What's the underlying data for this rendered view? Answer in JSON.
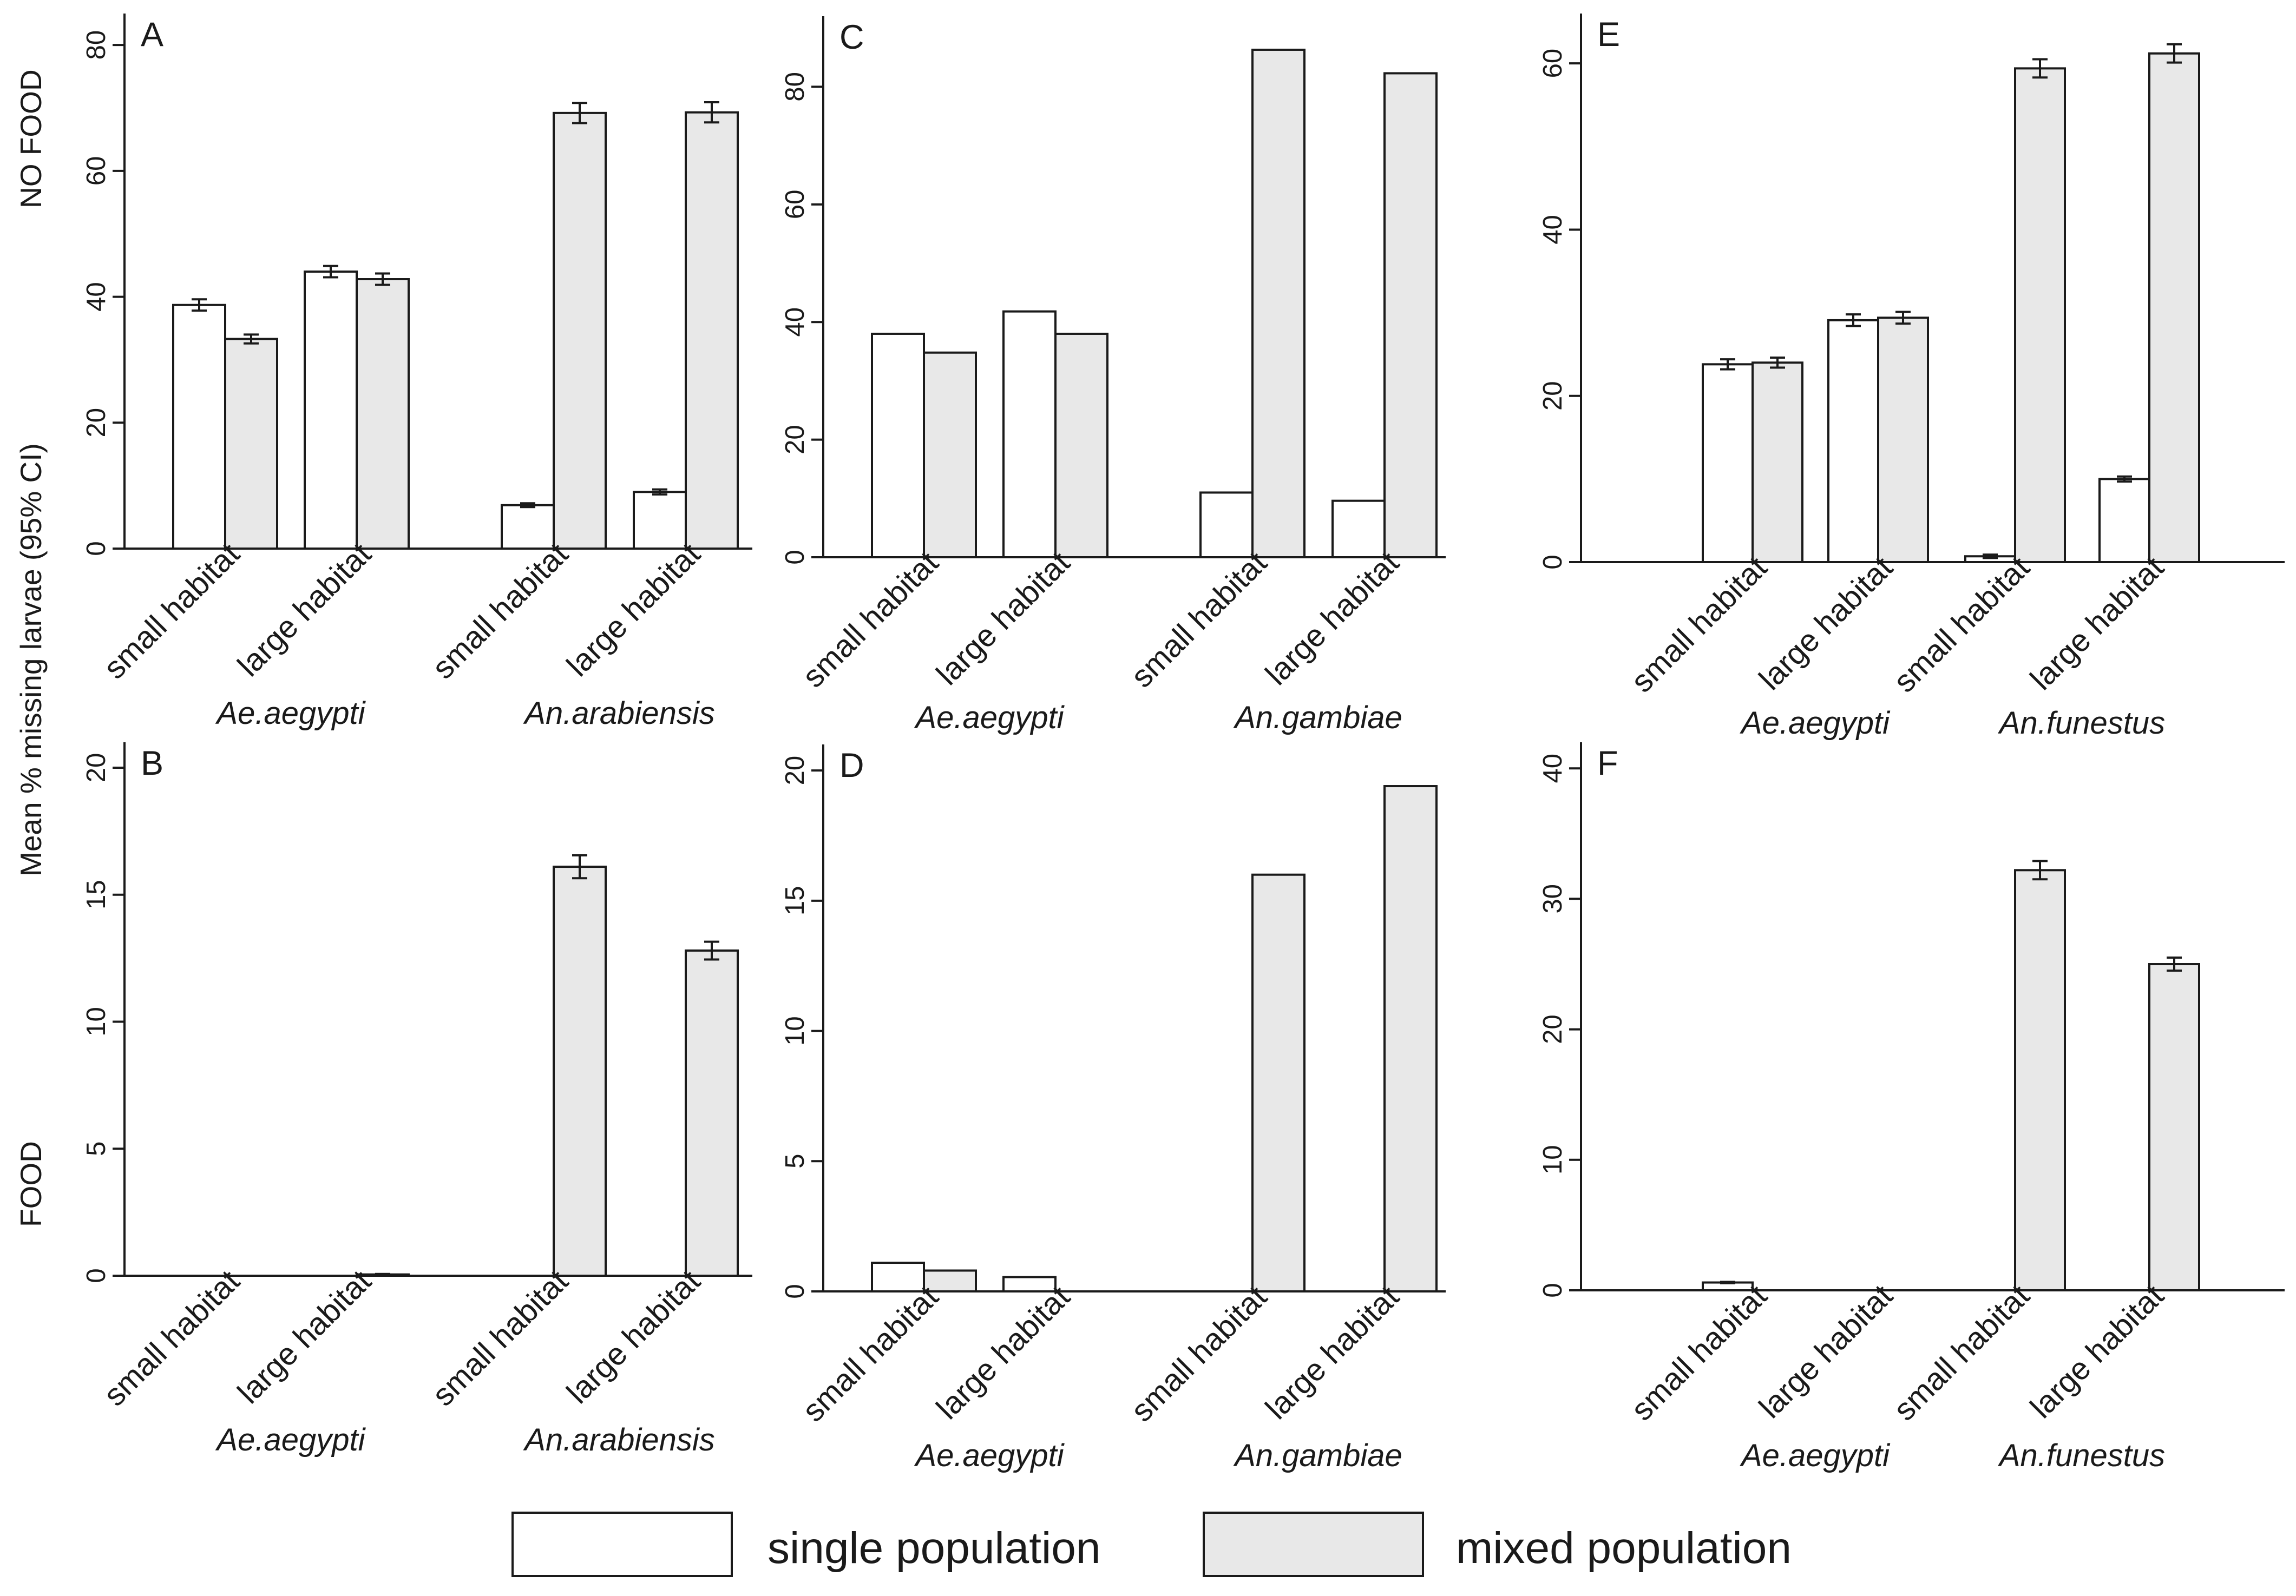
{
  "figure": {
    "y_axis_label": "Mean % missing larvae (95% CI)",
    "row_labels": [
      "NO FOOD",
      "FOOD"
    ]
  },
  "legend": {
    "single_label": "single population",
    "mixed_label": "mixed population",
    "single_color": "#ffffff",
    "mixed_color": "#e8e8e8"
  },
  "colors": {
    "axis": "#1a1a1a",
    "bar_stroke": "#1a1a1a"
  },
  "chart_data": [
    {
      "panel": "A",
      "type": "bar",
      "title": "A",
      "categories": [
        "small habitat",
        "large habitat",
        "small habitat",
        "large habitat"
      ],
      "groups": [
        "Ae.aegypti",
        "An.arabiensis"
      ],
      "series": [
        {
          "name": "single population",
          "values": [
            38.7,
            44.0,
            6.9,
            9.0
          ],
          "ci": [
            0.9,
            0.9,
            0.3,
            0.4
          ]
        },
        {
          "name": "mixed population",
          "values": [
            33.3,
            42.8,
            69.2,
            69.3
          ],
          "ci": [
            0.7,
            0.9,
            1.6,
            1.6
          ]
        }
      ],
      "ylim": [
        0,
        85
      ],
      "yticks": [
        0,
        20,
        40,
        60,
        80
      ],
      "error_bars": true
    },
    {
      "panel": "C",
      "type": "bar",
      "title": "C",
      "categories": [
        "small habitat",
        "large  habitat",
        "small habitat",
        "large habitat"
      ],
      "groups": [
        "Ae.aegypti",
        "An.gambiae"
      ],
      "series": [
        {
          "name": "single population",
          "values": [
            38.0,
            41.8,
            11.0,
            9.6
          ]
        },
        {
          "name": "mixed population",
          "values": [
            34.8,
            38.0,
            86.3,
            82.3
          ]
        }
      ],
      "ylim": [
        0,
        92
      ],
      "yticks": [
        0,
        20,
        40,
        60,
        80
      ],
      "error_bars": false
    },
    {
      "panel": "E",
      "type": "bar",
      "title": "E",
      "categories": [
        "small habitat",
        "large habitat",
        "small habitat",
        "large habitat"
      ],
      "groups": [
        "Ae.aegypti",
        "An.funestus"
      ],
      "series": [
        {
          "name": "single population",
          "values": [
            23.8,
            29.1,
            0.7,
            10.0
          ],
          "ci": [
            0.6,
            0.7,
            0.2,
            0.3
          ]
        },
        {
          "name": "mixed population",
          "values": [
            24.0,
            29.4,
            59.4,
            61.2
          ],
          "ci": [
            0.6,
            0.7,
            1.1,
            1.1
          ]
        }
      ],
      "ylim": [
        0,
        66
      ],
      "yticks": [
        0,
        20,
        40,
        60
      ],
      "error_bars": true
    },
    {
      "panel": "B",
      "type": "bar",
      "title": "B",
      "categories": [
        "small habitat",
        "large habitat",
        "small habitat",
        "large habitat"
      ],
      "groups": [
        "Ae.aegypti",
        "An.arabiensis"
      ],
      "series": [
        {
          "name": "single population",
          "values": [
            0,
            0,
            0,
            0
          ],
          "ci": [
            0,
            0,
            0,
            0
          ]
        },
        {
          "name": "mixed population",
          "values": [
            0,
            0.05,
            16.1,
            12.8
          ],
          "ci": [
            0,
            0.02,
            0.45,
            0.35
          ]
        }
      ],
      "ylim": [
        0,
        21
      ],
      "yticks": [
        0,
        5,
        10,
        15,
        20
      ],
      "error_bars": true
    },
    {
      "panel": "D",
      "type": "bar",
      "title": "D",
      "categories": [
        "small habitat",
        "large habitat",
        "small habitat",
        "large habitat"
      ],
      "groups": [
        "Ae.aegypti",
        "An.gambiae"
      ],
      "series": [
        {
          "name": "single population",
          "values": [
            1.1,
            0.55,
            0,
            0
          ]
        },
        {
          "name": "mixed population",
          "values": [
            0.8,
            0,
            16.0,
            19.4
          ]
        }
      ],
      "ylim": [
        0,
        21
      ],
      "yticks": [
        0,
        5,
        10,
        15,
        20
      ],
      "error_bars": false
    },
    {
      "panel": "F",
      "type": "bar",
      "title": "F",
      "categories": [
        "small habitat",
        "large habitat",
        "small habitat",
        "large habitat"
      ],
      "groups": [
        "Ae.aegypti",
        "An.funestus"
      ],
      "series": [
        {
          "name": "single population",
          "values": [
            0.6,
            0,
            0,
            0
          ],
          "ci": [
            0.05,
            0,
            0,
            0
          ]
        },
        {
          "name": "mixed population",
          "values": [
            0,
            0,
            32.2,
            25.0
          ],
          "ci": [
            0,
            0,
            0.7,
            0.5
          ]
        }
      ],
      "ylim": [
        0,
        42
      ],
      "yticks": [
        0,
        10,
        20,
        30,
        40
      ],
      "error_bars": true
    }
  ]
}
